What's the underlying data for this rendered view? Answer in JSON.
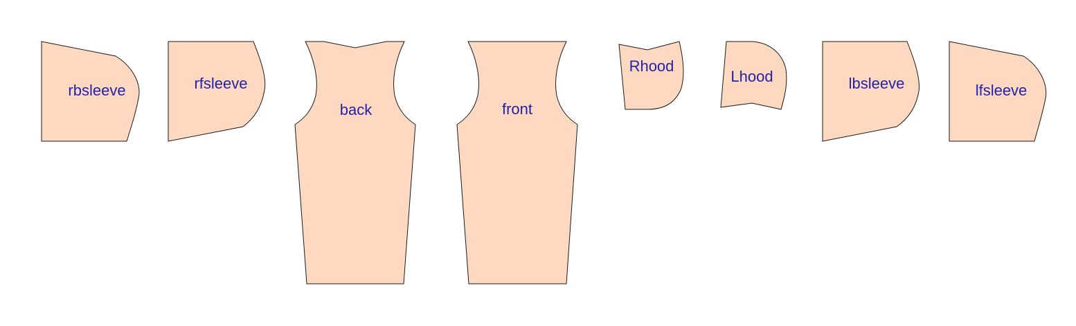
{
  "colors": {
    "fabric_fill": "#FDD9C1",
    "outline": "#1A1A1A",
    "label_text": "#2222AA",
    "background": "#FFFFFF"
  },
  "pieces": {
    "rbsleeve": {
      "label": "rbsleeve"
    },
    "rfsleeve": {
      "label": "rfsleeve"
    },
    "back": {
      "label": "back"
    },
    "front": {
      "label": "front"
    },
    "rhood": {
      "label": "Rhood"
    },
    "lhood": {
      "label": "Lhood"
    },
    "lbsleeve": {
      "label": "lbsleeve"
    },
    "lfsleeve": {
      "label": "lfsleeve"
    }
  }
}
